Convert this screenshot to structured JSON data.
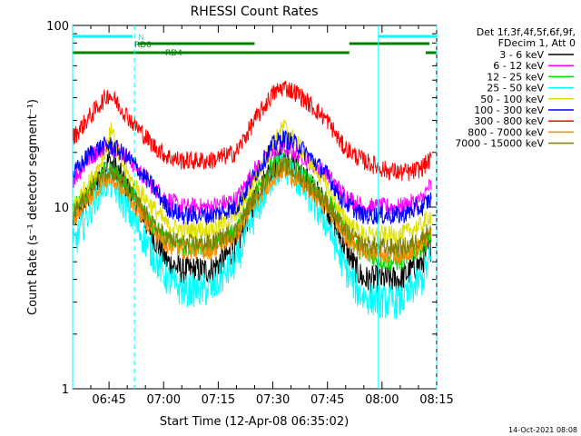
{
  "chart_data": {
    "type": "line",
    "title": "RHESSI Count Rates",
    "xlabel": "Start Time (12-Apr-08 06:35:02)",
    "ylabel": "Count Rate (s⁻¹ detector segment⁻¹)",
    "yscale": "log",
    "ylim": [
      1,
      100
    ],
    "xlim_minutes": [
      0,
      100
    ],
    "x_ticks": [
      {
        "t": 10,
        "label": "06:45"
      },
      {
        "t": 25,
        "label": "07:00"
      },
      {
        "t": 40,
        "label": "07:15"
      },
      {
        "t": 55,
        "label": "07:30"
      },
      {
        "t": 70,
        "label": "07:45"
      },
      {
        "t": 85,
        "label": "08:00"
      },
      {
        "t": 100,
        "label": "08:15"
      }
    ],
    "y_ticks": [
      {
        "v": 1,
        "label": "1"
      },
      {
        "v": 10,
        "label": "10"
      },
      {
        "v": 100,
        "label": "100"
      }
    ],
    "legend_header": [
      "Det 1f,3f,4f,5f,6f,9f,",
      "FDecim 1, Att 0"
    ],
    "legend_position": "right",
    "series": [
      {
        "name": "3 - 6 keV",
        "color": "#000000",
        "x": [
          0,
          5,
          8,
          10,
          12,
          16,
          22,
          26,
          30,
          38,
          45,
          50,
          55,
          58,
          62,
          70,
          74,
          78,
          80,
          86,
          90,
          93,
          96,
          98
        ],
        "y": [
          8.5,
          12,
          16,
          18,
          16,
          12,
          7,
          5,
          4.5,
          4.5,
          6,
          11,
          17,
          19,
          16,
          10,
          6.5,
          4.5,
          4,
          4,
          4,
          4.5,
          5,
          6
        ]
      },
      {
        "name": "6 - 12 keV",
        "color": "#ff00ff",
        "x": [
          0,
          5,
          8,
          10,
          12,
          16,
          22,
          26,
          30,
          38,
          45,
          50,
          55,
          58,
          62,
          70,
          74,
          78,
          80,
          86,
          90,
          93,
          96,
          98
        ],
        "y": [
          14,
          19,
          21,
          22,
          21,
          18,
          13,
          11,
          10,
          10,
          11,
          16,
          20,
          21,
          20,
          15,
          12,
          10.5,
          10,
          10,
          10,
          10.5,
          11,
          13
        ]
      },
      {
        "name": "12 - 25 keV",
        "color": "#00dd00",
        "x": [
          0,
          5,
          8,
          10,
          12,
          16,
          22,
          26,
          30,
          38,
          45,
          50,
          55,
          58,
          62,
          70,
          74,
          78,
          80,
          86,
          90,
          93,
          96,
          98
        ],
        "y": [
          9.5,
          13,
          15.5,
          17,
          15.5,
          12,
          8,
          6.5,
          6,
          6,
          7.5,
          12,
          17,
          18,
          16,
          11,
          8,
          6,
          5.5,
          5,
          5,
          5.5,
          6,
          7
        ]
      },
      {
        "name": "25 - 50 keV",
        "color": "#00ffff",
        "x": [
          0,
          5,
          8,
          10,
          12,
          16,
          22,
          26,
          30,
          38,
          45,
          50,
          55,
          58,
          62,
          70,
          74,
          78,
          80,
          86,
          90,
          93,
          96,
          98
        ],
        "y": [
          6,
          10,
          13,
          14,
          12.5,
          9,
          5.5,
          4,
          3.5,
          3.5,
          5,
          9,
          15,
          17,
          14,
          8,
          5,
          3.5,
          3.2,
          3,
          3,
          3.5,
          4,
          5
        ]
      },
      {
        "name": "50 - 100 keV",
        "color": "#e0e000",
        "x": [
          0,
          5,
          8,
          10,
          11,
          12,
          16,
          22,
          26,
          30,
          38,
          45,
          50,
          55,
          58,
          62,
          70,
          74,
          78,
          80,
          86,
          90,
          93,
          96,
          98
        ],
        "y": [
          10,
          14,
          18,
          24,
          28,
          20,
          14,
          10,
          8,
          7.5,
          7.5,
          9,
          14,
          22,
          28,
          22,
          13,
          9,
          7.5,
          7,
          7,
          7,
          7.5,
          8,
          9
        ]
      },
      {
        "name": "100 - 300 keV",
        "color": "#0000ff",
        "x": [
          0,
          5,
          8,
          10,
          12,
          16,
          22,
          26,
          30,
          38,
          45,
          50,
          55,
          58,
          62,
          70,
          74,
          78,
          80,
          86,
          90,
          93,
          96,
          98
        ],
        "y": [
          15,
          20,
          21.5,
          22,
          21,
          18,
          13,
          10,
          9,
          9,
          10,
          15,
          22,
          24,
          22,
          15,
          11,
          9.5,
          9,
          9,
          9,
          9.5,
          10,
          11
        ]
      },
      {
        "name": "300 - 800 keV",
        "color": "#ff0000",
        "x": [
          0,
          5,
          8,
          10,
          12,
          16,
          22,
          26,
          30,
          38,
          45,
          50,
          55,
          58,
          62,
          70,
          74,
          78,
          80,
          86,
          90,
          93,
          96,
          98
        ],
        "y": [
          24,
          32,
          38,
          42,
          38,
          30,
          22,
          19,
          18,
          18,
          20,
          30,
          42,
          46,
          42,
          30,
          22,
          19,
          18,
          16,
          15.5,
          15.5,
          16.5,
          18
        ]
      },
      {
        "name": "800 - 7000 keV",
        "color": "#ff8c00",
        "x": [
          0,
          5,
          8,
          10,
          12,
          16,
          22,
          26,
          30,
          38,
          45,
          50,
          55,
          58,
          62,
          70,
          74,
          78,
          80,
          86,
          90,
          93,
          96,
          98
        ],
        "y": [
          8.5,
          11.5,
          13.5,
          14.5,
          13.5,
          11,
          7.5,
          6.2,
          5.8,
          5.8,
          7,
          10.5,
          14.5,
          16,
          14,
          10,
          7.2,
          6,
          5.8,
          5.5,
          5.5,
          5.8,
          6.2,
          7
        ]
      },
      {
        "name": "7000 - 15000 keV",
        "color": "#808000",
        "x": [
          0,
          5,
          8,
          10,
          12,
          16,
          22,
          26,
          30,
          38,
          45,
          50,
          55,
          58,
          62,
          70,
          74,
          78,
          80,
          86,
          90,
          93,
          96,
          98
        ],
        "y": [
          9,
          12.5,
          15,
          16,
          15,
          12,
          8,
          6.8,
          6.3,
          6.3,
          7.5,
          11.5,
          16,
          17,
          15,
          10.5,
          7.8,
          6.5,
          6.2,
          6,
          6,
          6.2,
          6.8,
          7.5
        ]
      }
    ],
    "vertical_lines": [
      {
        "t": 0,
        "style": "solid"
      },
      {
        "t": 17,
        "style": "dashed"
      },
      {
        "t": 84,
        "style": "solid"
      },
      {
        "t": 100,
        "style": "dashed"
      }
    ],
    "status_bars": [
      {
        "label": "N",
        "color": "#00ffff",
        "segments": [
          [
            0,
            16.5
          ],
          [
            84,
            100
          ]
        ]
      },
      {
        "label": "RD0",
        "color": "#008000",
        "segments": [
          [
            18,
            50
          ],
          [
            76,
            98
          ]
        ]
      },
      {
        "label": "RD4",
        "color": "#008000",
        "segments": [
          [
            0,
            24
          ],
          [
            24,
            50
          ],
          [
            50,
            76
          ],
          [
            97,
            100
          ]
        ]
      }
    ],
    "footer_date": "14-Oct-2021 08:08"
  }
}
